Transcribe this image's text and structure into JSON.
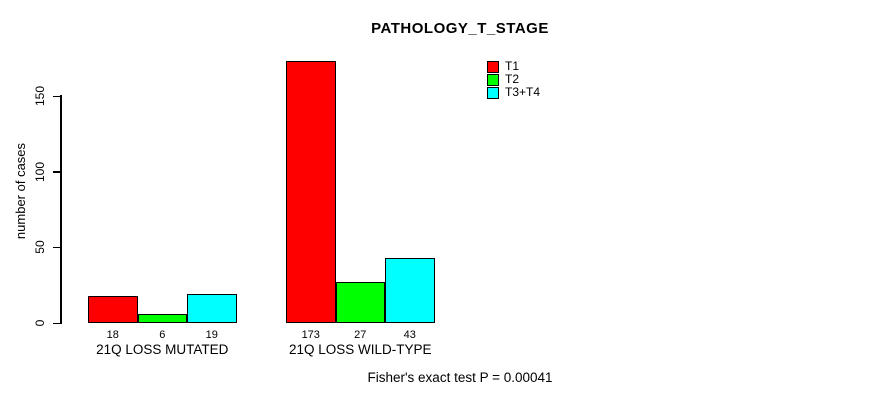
{
  "title": "PATHOLOGY_T_STAGE",
  "footer_note": "Fisher's exact test P = 0.00041",
  "chart_data": {
    "type": "bar",
    "title": "PATHOLOGY_T_STAGE",
    "categories": [
      "21Q LOSS MUTATED",
      "21Q LOSS WILD-TYPE"
    ],
    "series": [
      {
        "name": "T1",
        "color": "#ff0000",
        "values": [
          18,
          173
        ]
      },
      {
        "name": "T2",
        "color": "#00ff00",
        "values": [
          6,
          27
        ]
      },
      {
        "name": "T3+T4",
        "color": "#00ffff",
        "values": [
          19,
          43
        ]
      }
    ],
    "bar_value_labels": [
      [
        18,
        6,
        19
      ],
      [
        173,
        27,
        43
      ]
    ],
    "xlabel": "",
    "ylabel": "number of cases",
    "ylim": [
      0,
      175
    ],
    "yticks": [
      0,
      50,
      100,
      150
    ],
    "grid": false,
    "legend_position": "top-right",
    "annotation": "Fisher's exact test P = 0.00041"
  }
}
